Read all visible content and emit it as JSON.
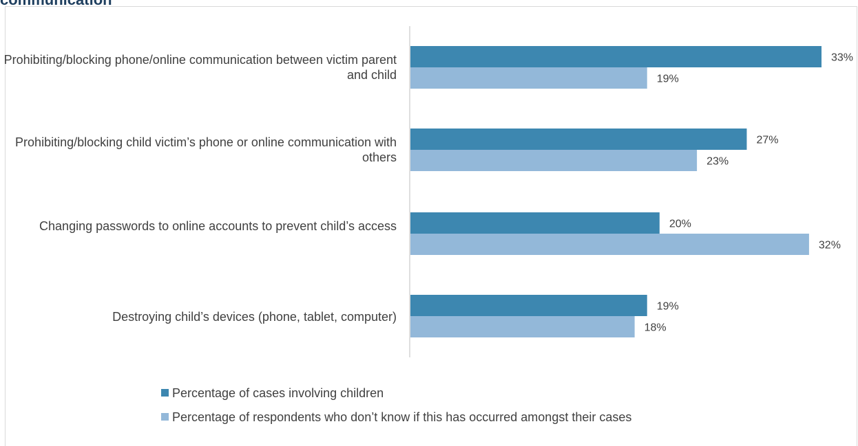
{
  "title": "communication",
  "colors": {
    "series1": "#3d87b0",
    "series2": "#93b8d9",
    "axis": "#bfbfbf",
    "text": "#404040"
  },
  "chart_data": {
    "type": "bar",
    "orientation": "horizontal",
    "title": "communication",
    "categories": [
      "Prohibiting/blocking phone/online communication between victim parent and child",
      "Prohibiting/blocking child victim’s phone or online communication with others",
      "Changing passwords to online accounts to prevent child’s access",
      "Destroying child’s devices (phone, tablet, computer)"
    ],
    "series": [
      {
        "name": "Percentage of cases involving children",
        "values": [
          33,
          27,
          20,
          19
        ],
        "labels": [
          "33%",
          "27%",
          "20%",
          "19%"
        ]
      },
      {
        "name": "Percentage of respondents who don’t know if this has occurred amongst their cases",
        "values": [
          19,
          23,
          32,
          18
        ],
        "labels": [
          "19%",
          "23%",
          "32%",
          "18%"
        ]
      }
    ],
    "xlim": [
      0,
      33
    ],
    "grid": false,
    "legend": "bottom"
  },
  "legend": [
    "Percentage of cases involving children",
    "Percentage of respondents who don’t know if this has occurred amongst their cases"
  ]
}
